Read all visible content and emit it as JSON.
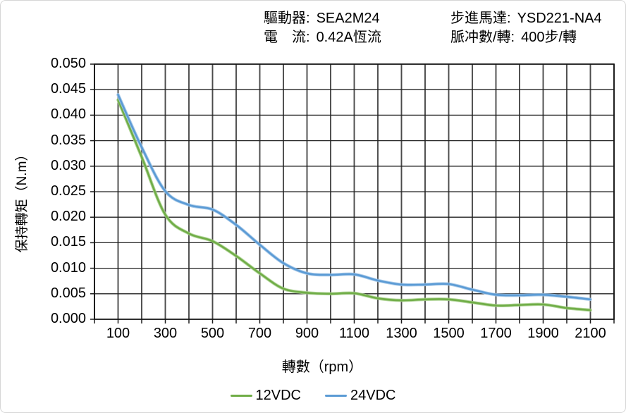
{
  "header": {
    "items": [
      {
        "label": "驅動器:",
        "value": "SEA2M24"
      },
      {
        "label": "電　流:",
        "value": "0.42A恆流"
      },
      {
        "label": "步進馬達:",
        "value": "YSD221-NA4"
      },
      {
        "label": "脈冲數/轉:",
        "value": "400步/轉"
      }
    ]
  },
  "chart_data": {
    "type": "line",
    "title": "",
    "xlabel": "轉數（rpm）",
    "ylabel": "保持轉矩（N.m）",
    "xlim": [
      0,
      2200
    ],
    "ylim": [
      0,
      0.05
    ],
    "grid": true,
    "legend_position": "bottom",
    "x": [
      100,
      200,
      300,
      400,
      500,
      600,
      700,
      800,
      900,
      1000,
      1100,
      1200,
      1300,
      1400,
      1500,
      1600,
      1700,
      1800,
      1900,
      2000,
      2100
    ],
    "series": [
      {
        "name": "12VDC",
        "color": "#70AD47",
        "halo_color": "#a9d18e",
        "values": [
          0.043,
          0.0318,
          0.0205,
          0.0168,
          0.0153,
          0.0124,
          0.009,
          0.006,
          0.0052,
          0.005,
          0.0051,
          0.0041,
          0.0037,
          0.0039,
          0.0039,
          0.0033,
          0.0027,
          0.0028,
          0.0029,
          0.0022,
          0.0018
        ]
      },
      {
        "name": "24VDC",
        "color": "#5B9BD5",
        "halo_color": "#9dc3e6",
        "values": [
          0.044,
          0.0337,
          0.0251,
          0.0224,
          0.0215,
          0.0185,
          0.0146,
          0.011,
          0.009,
          0.0087,
          0.0088,
          0.0076,
          0.0068,
          0.0068,
          0.0069,
          0.0058,
          0.0048,
          0.0047,
          0.0048,
          0.0044,
          0.0039
        ]
      }
    ],
    "x_tick_labels": [
      "100",
      "300",
      "500",
      "700",
      "900",
      "1100",
      "1300",
      "1500",
      "1700",
      "1900",
      "2100"
    ],
    "x_tick_values": [
      100,
      300,
      500,
      700,
      900,
      1100,
      1300,
      1500,
      1700,
      1900,
      2100
    ],
    "y_tick_labels": [
      "0.000",
      "0.005",
      "0.010",
      "0.015",
      "0.020",
      "0.025",
      "0.030",
      "0.035",
      "0.040",
      "0.045",
      "0.050"
    ],
    "x_grid_step": 100,
    "y_grid_step": 0.005
  }
}
